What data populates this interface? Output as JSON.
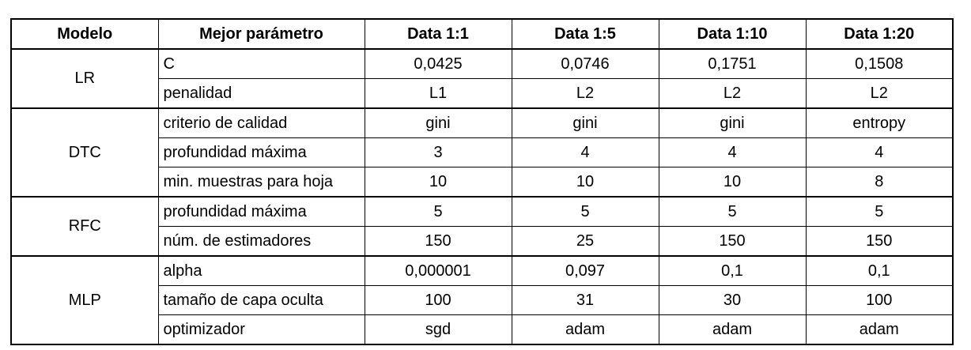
{
  "table": {
    "headers": [
      "Modelo",
      "Mejor parámetro",
      "Data 1:1",
      "Data 1:5",
      "Data 1:10",
      "Data 1:20"
    ],
    "groups": [
      {
        "model": "LR",
        "rows": [
          {
            "param": "C",
            "values": [
              "0,0425",
              "0,0746",
              "0,1751",
              "0,1508"
            ]
          },
          {
            "param": "penalidad",
            "values": [
              "L1",
              "L2",
              "L2",
              "L2"
            ]
          }
        ]
      },
      {
        "model": "DTC",
        "rows": [
          {
            "param": "criterio de calidad",
            "values": [
              "gini",
              "gini",
              "gini",
              "entropy"
            ]
          },
          {
            "param": "profundidad máxima",
            "values": [
              "3",
              "4",
              "4",
              "4"
            ]
          },
          {
            "param": "min. muestras para hoja",
            "values": [
              "10",
              "10",
              "10",
              "8"
            ]
          }
        ]
      },
      {
        "model": "RFC",
        "rows": [
          {
            "param": "profundidad máxima",
            "values": [
              "5",
              "5",
              "5",
              "5"
            ]
          },
          {
            "param": "núm. de estimadores",
            "values": [
              "150",
              "25",
              "150",
              "150"
            ]
          }
        ]
      },
      {
        "model": "MLP",
        "rows": [
          {
            "param": "alpha",
            "values": [
              "0,000001",
              "0,097",
              "0,1",
              "0,1"
            ]
          },
          {
            "param": "tamaño de capa oculta",
            "values": [
              "100",
              "31",
              "30",
              "100"
            ]
          },
          {
            "param": "optimizador",
            "values": [
              "sgd",
              "adam",
              "adam",
              "adam"
            ]
          }
        ]
      }
    ]
  }
}
